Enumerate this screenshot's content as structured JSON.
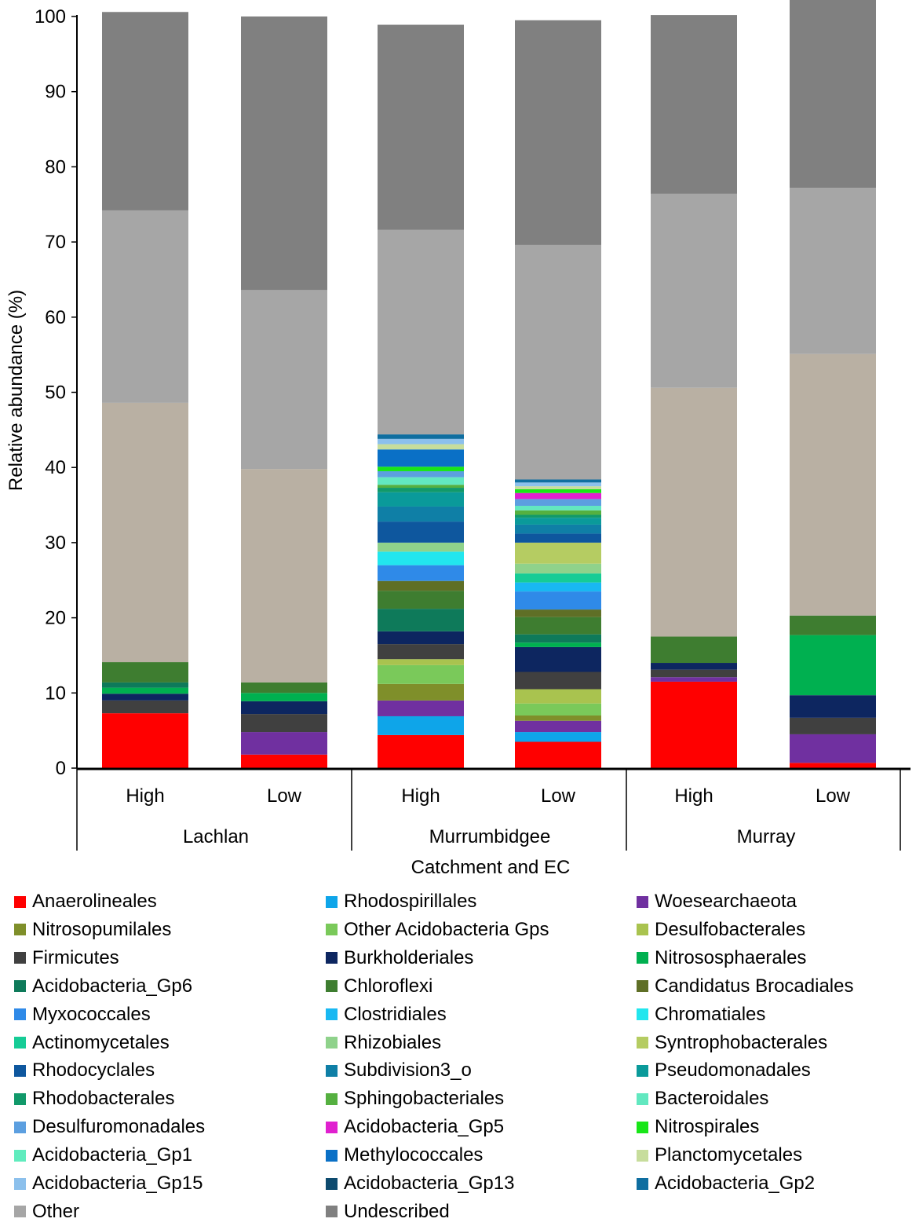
{
  "chart_data": {
    "type": "bar",
    "stacked": true,
    "ylabel": "Relative abundance (%)",
    "xlabel": "Catchment and EC",
    "ylim": [
      0,
      100
    ],
    "yticks": [
      0,
      10,
      20,
      30,
      40,
      50,
      60,
      70,
      80,
      90,
      100
    ],
    "categories": [
      "High",
      "Low",
      "High",
      "Low",
      "High",
      "Low"
    ],
    "groups": [
      {
        "name": "Lachlan",
        "categories": [
          "High",
          "Low"
        ]
      },
      {
        "name": "Murrumbidgee",
        "categories": [
          "High",
          "Low"
        ]
      },
      {
        "name": "Murray",
        "categories": [
          "High",
          "Low"
        ]
      }
    ],
    "series": [
      {
        "name": "Anaerolineales",
        "color": "#ff0000",
        "values": [
          7.3,
          1.8,
          4.4,
          3.5,
          11.5,
          0.7
        ]
      },
      {
        "name": "Rhodospirillales",
        "color": "#0ea5e9",
        "values": [
          0,
          0,
          2.5,
          1.3,
          0,
          0
        ]
      },
      {
        "name": "Woesearchaeota",
        "color": "#7030a0",
        "values": [
          0,
          3.0,
          2.1,
          1.5,
          0.6,
          3.8
        ]
      },
      {
        "name": "Nitrosopumilales",
        "color": "#7f8f2a",
        "values": [
          0,
          0,
          2.2,
          0.7,
          0,
          0
        ]
      },
      {
        "name": "Other Acidobacteria Gps",
        "color": "#7ac95a",
        "values": [
          0,
          0,
          2.5,
          1.6,
          0,
          0
        ]
      },
      {
        "name": "Desulfobacterales",
        "color": "#a9c34f",
        "values": [
          0,
          0,
          0.8,
          1.9,
          0,
          0
        ]
      },
      {
        "name": "Firmicutes",
        "color": "#404040",
        "values": [
          1.7,
          2.4,
          2.0,
          2.3,
          1.0,
          2.2
        ]
      },
      {
        "name": "Burkholderiales",
        "color": "#0d2660",
        "values": [
          0.9,
          1.7,
          1.7,
          3.3,
          0.9,
          3.0
        ]
      },
      {
        "name": "Nitrososphaerales",
        "color": "#00b050",
        "values": [
          0.8,
          1.1,
          0,
          0.6,
          0,
          8.0
        ]
      },
      {
        "name": "Acidobacteria_Gp6",
        "color": "#0e7a5a",
        "values": [
          0.7,
          0,
          3.0,
          1.1,
          0,
          0
        ]
      },
      {
        "name": "Chloroflexi",
        "color": "#3e7d30",
        "values": [
          2.7,
          1.4,
          2.4,
          2.3,
          3.5,
          2.6
        ]
      },
      {
        "name": "Candidatus Brocadiales",
        "color": "#5f6f26",
        "values": [
          0,
          0,
          1.3,
          1.0,
          0,
          0
        ]
      },
      {
        "name": "Myxococcales",
        "color": "#2f8ae8",
        "values": [
          0,
          0,
          2.1,
          2.4,
          0,
          0
        ]
      },
      {
        "name": "Clostridiales",
        "color": "#19b8f2",
        "values": [
          0,
          0,
          0,
          1.2,
          0,
          0
        ]
      },
      {
        "name": "Chromatiales",
        "color": "#22e6ee",
        "values": [
          0,
          0,
          1.8,
          0,
          0,
          0
        ]
      },
      {
        "name": "Actinomycetales",
        "color": "#16cc96",
        "values": [
          0,
          0,
          0,
          1.2,
          0,
          0
        ]
      },
      {
        "name": "Rhizobiales",
        "color": "#8fd28b",
        "values": [
          0,
          0,
          1.2,
          1.3,
          0,
          0
        ]
      },
      {
        "name": "Syntrophobacterales",
        "color": "#b5cc62",
        "values": [
          0,
          0,
          0,
          2.8,
          0,
          0
        ]
      },
      {
        "name": "Rhodocyclales",
        "color": "#0e579e",
        "values": [
          0,
          0,
          2.8,
          1.2,
          0,
          0
        ]
      },
      {
        "name": "Subdivision3_o",
        "color": "#0f7fa6",
        "values": [
          0,
          0,
          2.0,
          1.2,
          0,
          0
        ]
      },
      {
        "name": "Pseudomonadales",
        "color": "#0a9a9a",
        "values": [
          0,
          0,
          1.9,
          0.9,
          0,
          0
        ]
      },
      {
        "name": "Rhodobacterales",
        "color": "#11996a",
        "values": [
          0,
          0,
          0.6,
          0.4,
          0,
          0
        ]
      },
      {
        "name": "Sphingobacteriales",
        "color": "#55b040",
        "values": [
          0,
          0,
          0.4,
          0.6,
          0,
          0
        ]
      },
      {
        "name": "Bacteroidales",
        "color": "#62e8c0",
        "values": [
          0,
          0,
          1.0,
          0.6,
          0,
          0
        ]
      },
      {
        "name": "Desulfuromonadales",
        "color": "#5c9fe0",
        "values": [
          0,
          0,
          0.8,
          0.9,
          0,
          0
        ]
      },
      {
        "name": "Acidobacteria_Gp5",
        "color": "#e020cf",
        "values": [
          0,
          0,
          0,
          0.8,
          0,
          0
        ]
      },
      {
        "name": "Nitrospirales",
        "color": "#18e618",
        "values": [
          0,
          0,
          0.6,
          0.5,
          0,
          0
        ]
      },
      {
        "name": "Acidobacteria_Gp1",
        "color": "#60ecbe",
        "values": [
          0,
          0,
          0,
          0,
          0,
          0
        ]
      },
      {
        "name": "Methylococcales",
        "color": "#0a70c6",
        "values": [
          0,
          0,
          2.3,
          0,
          0,
          0
        ]
      },
      {
        "name": "Planctomycetales",
        "color": "#c7dd9c",
        "values": [
          0,
          0,
          0.7,
          0.4,
          0,
          0
        ]
      },
      {
        "name": "Acidobacteria_Gp15",
        "color": "#8cc0ec",
        "values": [
          0,
          0,
          0.7,
          0.5,
          0,
          0
        ]
      },
      {
        "name": "Acidobacteria_Gp13",
        "color": "#0d4a6e",
        "values": [
          0,
          0,
          0,
          0,
          0,
          0
        ]
      },
      {
        "name": "Acidobacteria_Gp2",
        "color": "#0f6ea0",
        "values": [
          0,
          0,
          0.6,
          0.4,
          0,
          0
        ]
      },
      {
        "name": "Other",
        "color": "#a6a6a6",
        "values": [
          25.6,
          23.8,
          27.2,
          31.2,
          25.8,
          22.1
        ]
      },
      {
        "name": "Undescribed",
        "color": "#808080",
        "values": [
          26.4,
          36.4,
          27.3,
          29.9,
          23.8,
          27.8
        ]
      }
    ],
    "unlisted_segments": {
      "note": "narrow taxa bands whose legend colour could not be matched to a single entry",
      "values": [
        34.5,
        28.4,
        0,
        0,
        33.1,
        34.8
      ]
    }
  }
}
